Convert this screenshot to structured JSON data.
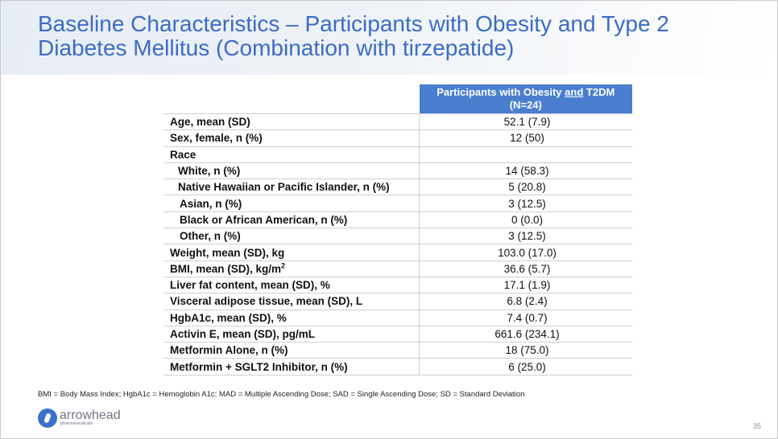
{
  "title": {
    "line1": "Baseline Characteristics – Participants with Obesity and Type 2",
    "line2": "Diabetes Mellitus (Combination with tirzepatide)"
  },
  "table": {
    "header": {
      "part1": "Participants with Obesity ",
      "part_underlined": "and",
      "part2": " T2DM",
      "line2": "(N=24)"
    },
    "rows": [
      {
        "label": "Age, mean (SD)",
        "value": "52.1 (7.9)"
      },
      {
        "label": "Sex, female, n (%)",
        "value": "12 (50)"
      },
      {
        "label": "Race",
        "value": ""
      },
      {
        "label": "White, n (%)",
        "value": "14 (58.3)"
      },
      {
        "label": "Native Hawaiian or Pacific Islander, n (%)",
        "value": "5 (20.8)"
      },
      {
        "label": "Asian, n (%)",
        "value": "3 (12.5)"
      },
      {
        "label": "Black or African American, n (%)",
        "value": "0 (0.0)"
      },
      {
        "label": "Other, n (%)",
        "value": "3 (12.5)"
      },
      {
        "label": "Weight, mean (SD), kg",
        "value": "103.0 (17.0)"
      },
      {
        "label": "BMI, mean (SD), kg/m",
        "label_sup": "2",
        "value": "36.6 (5.7)"
      },
      {
        "label": "Liver fat content, mean (SD), %",
        "value": "17.1 (1.9)"
      },
      {
        "label": "Visceral adipose tissue, mean (SD), L",
        "value": "6.8 (2.4)"
      },
      {
        "label": "HgbA1c, mean (SD), %",
        "value": "7.4 (0.7)"
      },
      {
        "label": "Activin E, mean (SD), pg/mL",
        "value": "661.6 (234.1)"
      },
      {
        "label": "Metformin Alone, n (%)",
        "value": "18 (75.0)"
      },
      {
        "label": "Metformin + SGLT2 Inhibitor, n (%)",
        "value": "6 (25.0)"
      }
    ]
  },
  "footnote": "BMI = Body Mass Index; HgbA1c = Hemoglobin A1c; MAD = Multiple Ascending Dose; SAD = Single Ascending Dose; SD = Standard Deviation",
  "logo": {
    "name": "arrowhead",
    "sub": "pharmaceuticals"
  },
  "page_number": "35",
  "colors": {
    "title": "#3b6cc6",
    "header_bg": "#4a7fd0"
  }
}
